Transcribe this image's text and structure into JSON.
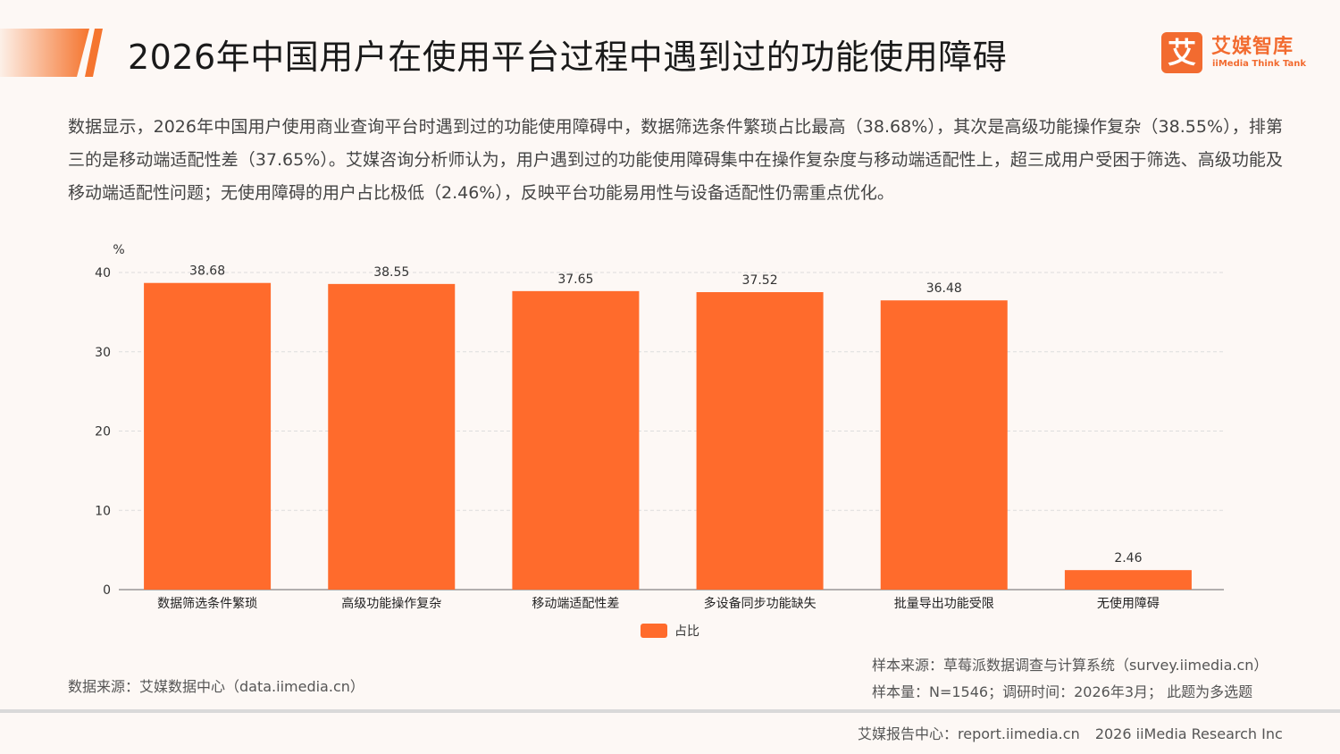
{
  "header": {
    "title": "2026年中国用户在使用平台过程中遇到过的功能使用障碍",
    "logo_cn": "艾媒智库",
    "logo_en": "iiMedia Think Tank",
    "logo_mark": "艾"
  },
  "summary": "数据显示，2026年中国用户使用商业查询平台时遇到过的功能使用障碍中，数据筛选条件繁琐占比最高（38.68%），其次是高级功能操作复杂（38.55%），排第三的是移动端适配性差（37.65%）。艾媒咨询分析师认为，用户遇到过的功能使用障碍集中在操作复杂度与移动端适配性上，超三成用户受困于筛选、高级功能及移动端适配性问题；无使用障碍的用户占比极低（2.46%），反映平台功能易用性与设备适配性仍需重点优化。",
  "chart_data": {
    "type": "bar",
    "categories": [
      "数据筛选条件繁琐",
      "高级功能操作复杂",
      "移动端适配性差",
      "多设备同步功能缺失",
      "批量导出功能受限",
      "无使用障碍"
    ],
    "series": [
      {
        "name": "占比",
        "values": [
          38.68,
          38.55,
          37.65,
          37.52,
          36.48,
          2.46
        ]
      }
    ],
    "value_labels": [
      "38.68",
      "38.55",
      "37.65",
      "37.52",
      "36.48",
      "2.46"
    ],
    "yunit": "%",
    "ylim": [
      0,
      40
    ],
    "yticks": [
      "0",
      "10",
      "20",
      "30",
      "40"
    ],
    "ytick_values": [
      0,
      10,
      20,
      30,
      40
    ],
    "grid": true,
    "legend_position": "bottom-center",
    "bar_color": "#ff6b2c"
  },
  "sources": {
    "data_source": "数据来源：艾媒数据中心（data.iimedia.cn）",
    "sample_source": "样本来源：草莓派数据调查与计算系统（survey.iimedia.cn）",
    "sample_size": "样本量：N=1546；调研时间：2026年3月； 此题为多选题"
  },
  "footer": {
    "center": "艾媒报告中心：report.iimedia.cn",
    "copyright": "2026 iiMedia Research Inc"
  }
}
